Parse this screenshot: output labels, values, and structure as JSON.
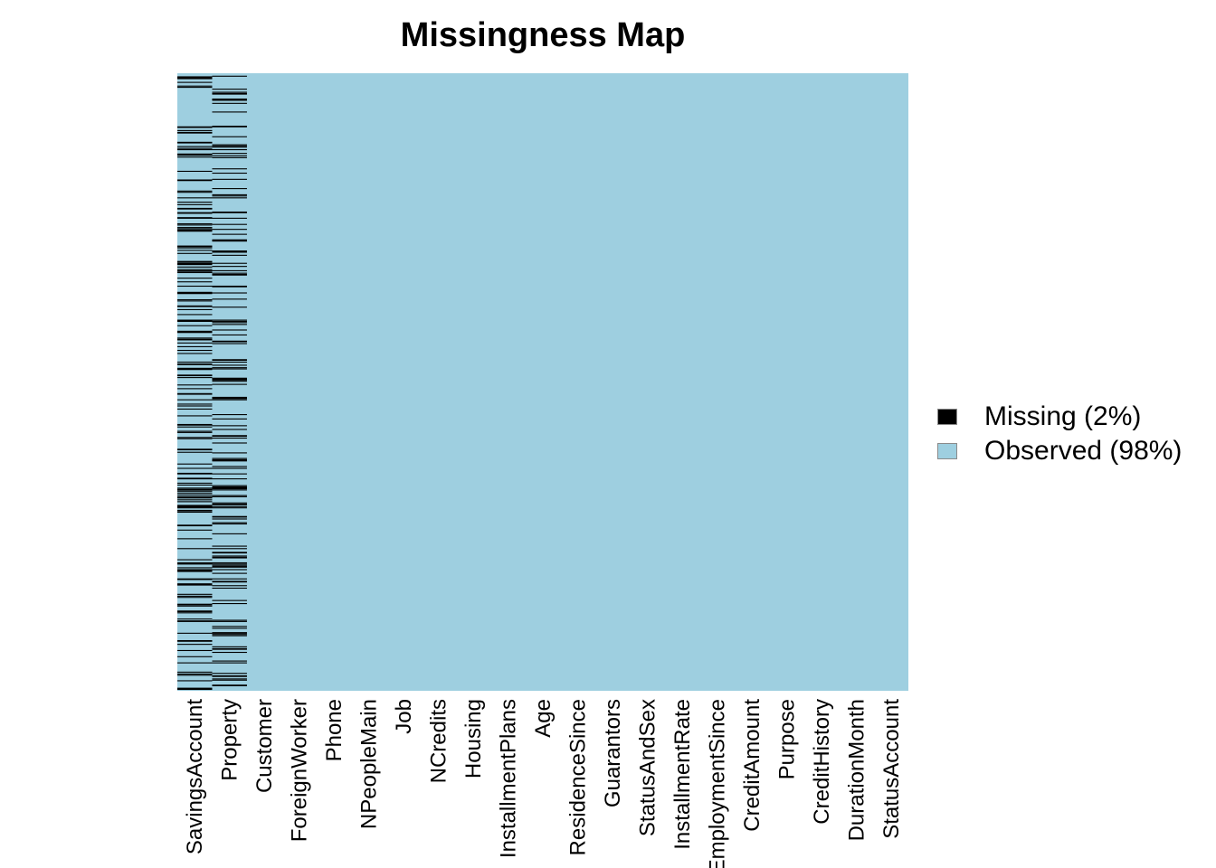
{
  "chart_data": {
    "type": "heatmap",
    "title": "Missingness Map",
    "xlabel": "",
    "ylabel": "",
    "n_rows": 1000,
    "columns": [
      "SavingsAccount",
      "Property",
      "Customer",
      "ForeignWorker",
      "Phone",
      "NPeopleMain",
      "Job",
      "NCredits",
      "Housing",
      "InstallmentPlans",
      "Age",
      "ResidenceSince",
      "Guarantors",
      "StatusAndSex",
      "InstallmentRate",
      "EmploymentSince",
      "CreditAmount",
      "Purpose",
      "CreditHistory",
      "DurationMonth",
      "StatusAccount"
    ],
    "missing_fraction_by_column": [
      0.183,
      0.154,
      0,
      0,
      0,
      0,
      0,
      0,
      0,
      0,
      0,
      0,
      0,
      0,
      0,
      0,
      0,
      0,
      0,
      0,
      0
    ],
    "legend": {
      "position": "right",
      "items": [
        {
          "label": "Missing (2%)",
          "color": "#000000"
        },
        {
          "label": "Observed (98%)",
          "color": "#9ecfe0"
        }
      ]
    },
    "colors": {
      "missing": "#000000",
      "observed": "#9ecfe0"
    }
  }
}
